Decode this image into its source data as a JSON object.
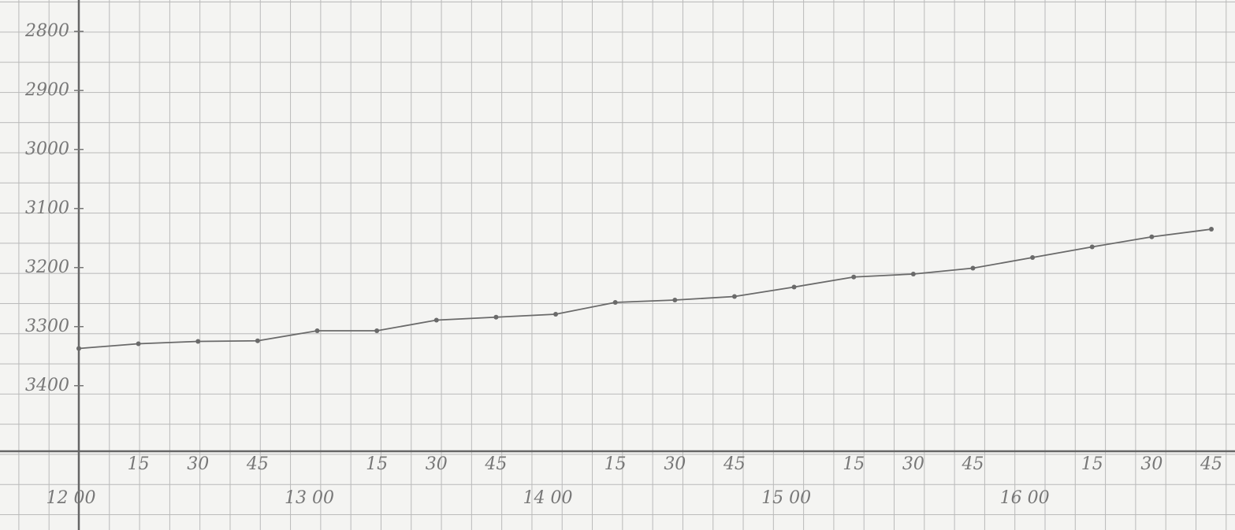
{
  "chart_data": {
    "type": "line",
    "categories": [
      "12 00",
      "15",
      "30",
      "45",
      "13 00",
      "15",
      "30",
      "45",
      "14 00",
      "15",
      "30",
      "45",
      "15 00",
      "15",
      "30",
      "45",
      "16 00",
      "15",
      "30",
      "45"
    ],
    "values": [
      3337,
      3329,
      3325,
      3324,
      3307,
      3307,
      3289,
      3284,
      3279,
      3259,
      3255,
      3249,
      3233,
      3216,
      3211,
      3201,
      3183,
      3165,
      3148,
      3135
    ],
    "color": "#6a6a6a",
    "ylim": [
      2747,
      3511
    ],
    "y_inverted": true,
    "yticks": [
      2800,
      2900,
      3000,
      3100,
      3200,
      3300,
      3400
    ]
  }
}
